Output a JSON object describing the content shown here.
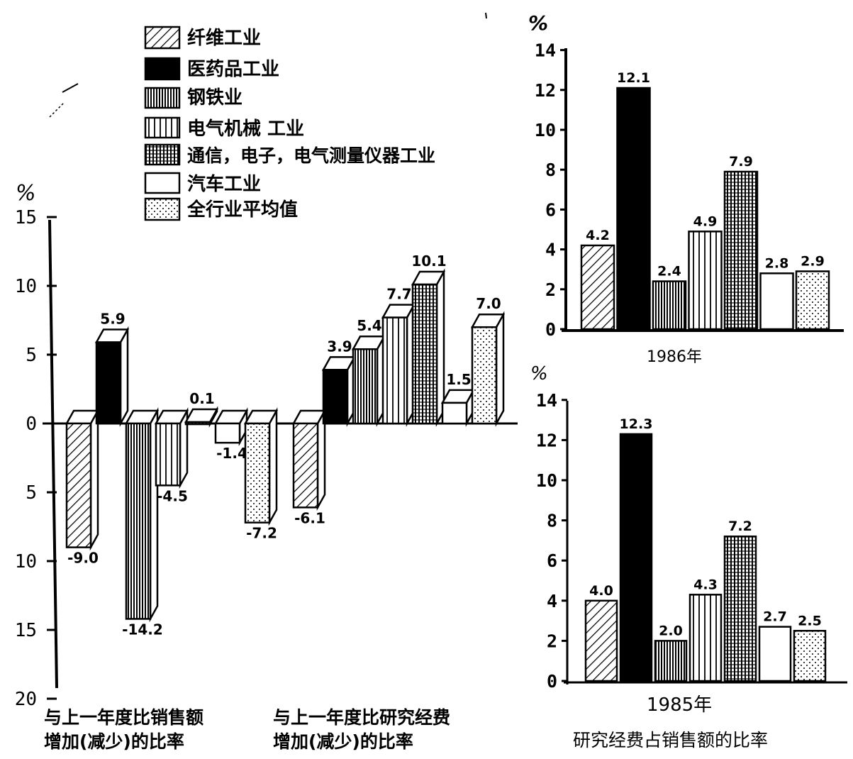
{
  "legend": {
    "items": [
      {
        "label": "纤维工业",
        "pattern": "hatch"
      },
      {
        "label": "医药品工业",
        "pattern": "solid"
      },
      {
        "label": "钢铁业",
        "pattern": "vdense"
      },
      {
        "label": "电气机械 工业",
        "pattern": "vsparse"
      },
      {
        "label": "通信，电子，电气测量仪器工业",
        "pattern": "grid"
      },
      {
        "label": "汽车工业",
        "pattern": "white"
      },
      {
        "label": "全行业平均值",
        "pattern": "dots"
      }
    ]
  },
  "left_chart": {
    "unit": "%",
    "y_ticks": [
      "15",
      "10",
      "5",
      "0",
      "5",
      "10",
      "15",
      "20"
    ],
    "y_tick_values": [
      15,
      10,
      5,
      0,
      -5,
      -10,
      -15,
      -20
    ],
    "caption_sales": "与上一年度比销售额增加(减少)的比率",
    "caption_research": "与上一年度比研究经费增加(减少)的比率"
  },
  "top_right": {
    "unit": "%",
    "y_ticks": [
      "14",
      "12",
      "10",
      "8",
      "6",
      "4",
      "2",
      "0"
    ],
    "year_label": "1986年"
  },
  "bottom_right": {
    "unit": "%",
    "y_ticks": [
      "14",
      "12",
      "10",
      "8",
      "6",
      "4",
      "2",
      "0"
    ],
    "year_label": "1985年",
    "caption": "研究经费占销售额的比率"
  },
  "chart_data": [
    {
      "type": "bar",
      "categories": [
        "纤维工业",
        "医药品工业",
        "钢铁业",
        "电气机械 工业",
        "通信，电子，电气测量仪器工业",
        "汽车工业",
        "全行业平均值"
      ],
      "series": [
        {
          "values": [
            -9.0,
            5.9,
            -14.2,
            -4.5,
            0.1,
            -1.4,
            -7.2
          ],
          "labels": [
            "-9.0",
            "5.9",
            "-14.2",
            "-4.5",
            "0.1",
            "-1.4",
            "-7.2"
          ]
        }
      ],
      "ylabel": "%",
      "ylim": [
        -20,
        15
      ],
      "xlabel": "与上一年度比销售额增加(减少)的比率"
    },
    {
      "type": "bar",
      "categories": [
        "纤维工业",
        "医药品工业",
        "钢铁业",
        "电气机械 工业",
        "通信，电子，电气测量仪器工业",
        "汽车工业",
        "全行业平均值"
      ],
      "series": [
        {
          "values": [
            -6.1,
            3.9,
            5.4,
            7.7,
            10.1,
            1.5,
            7.0
          ],
          "labels": [
            "-6.1",
            "3.9",
            "5.4",
            "7.7",
            "10.1",
            "1.5",
            "7.0"
          ]
        }
      ],
      "ylabel": "%",
      "ylim": [
        -20,
        15
      ],
      "xlabel": "与上一年度比研究经费增加(减少)的比率"
    },
    {
      "type": "bar",
      "title": "1986年",
      "categories": [
        "纤维工业",
        "医药品工业",
        "钢铁业",
        "电气机械 工业",
        "通信，电子，电气测量仪器工业",
        "汽车工业",
        "全行业平均值"
      ],
      "series": [
        {
          "values": [
            4.2,
            12.1,
            2.4,
            4.9,
            7.9,
            2.8,
            2.9
          ],
          "labels": [
            "4.2",
            "12.1",
            "2.4",
            "4.9",
            "7.9",
            "2.8",
            "2.9"
          ]
        }
      ],
      "ylabel": "%",
      "ylim": [
        0,
        14
      ]
    },
    {
      "type": "bar",
      "title": "1985年",
      "categories": [
        "纤维工业",
        "医药品工业",
        "钢铁业",
        "电气机械 工业",
        "通信，电子，电气测量仪器工业",
        "汽车工业",
        "全行业平均值"
      ],
      "series": [
        {
          "values": [
            4.0,
            12.3,
            2.0,
            4.3,
            7.2,
            2.7,
            2.5
          ],
          "labels": [
            "4.0",
            "12.3",
            "2.0",
            "4.3",
            "7.2",
            "2.7",
            "2.5"
          ]
        }
      ],
      "ylabel": "%",
      "ylim": [
        0,
        14
      ],
      "xlabel": "研究经费占销售额的比率"
    }
  ]
}
